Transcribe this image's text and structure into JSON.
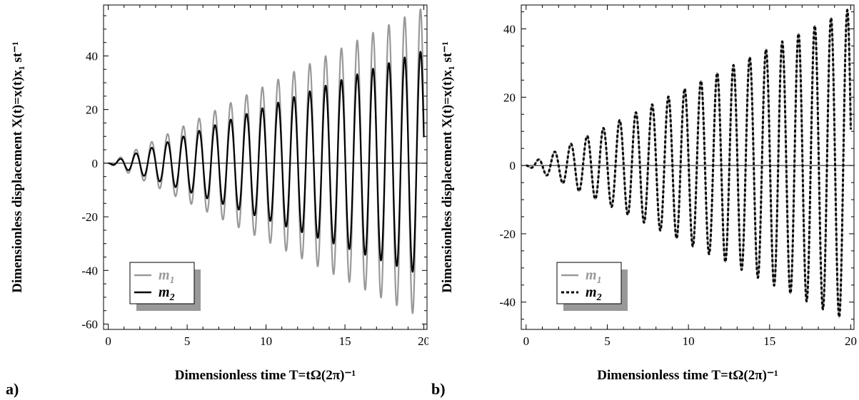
{
  "chart_data": [
    {
      "type": "line",
      "panel_label": "a)",
      "xlabel": "Dimensionless time T=tΩ(2π)⁻¹",
      "ylabel": "Dimensionless displacement X(t)=x(t)x₁ st⁻¹",
      "xlim": [
        -0.3,
        20.2
      ],
      "ylim": [
        -62,
        59
      ],
      "x_ticks": [
        0,
        5,
        10,
        15,
        20
      ],
      "y_ticks": [
        -60,
        -40,
        -20,
        0,
        20,
        40
      ],
      "grid": false,
      "legend_position": "bottom-left",
      "series": [
        {
          "name": "m1",
          "subscript": "1",
          "color": "#999999",
          "style": "solid",
          "growth_rate": 2.9,
          "final_value": -57
        },
        {
          "name": "m2",
          "subscript": "2",
          "color": "#000000",
          "style": "solid",
          "growth_rate": 2.1,
          "final_value": -43
        }
      ]
    },
    {
      "type": "line",
      "panel_label": "b)",
      "xlabel": "Dimensionless time T=tΩ(2π)⁻¹",
      "ylabel": "Dimensionless displacement X(t)=x(t)x₁ st⁻¹",
      "xlim": [
        -0.3,
        20.2
      ],
      "ylim": [
        -48,
        47
      ],
      "x_ticks": [
        0,
        5,
        10,
        15,
        20
      ],
      "y_ticks": [
        -40,
        -20,
        0,
        20,
        40
      ],
      "grid": false,
      "legend_position": "bottom-left",
      "series": [
        {
          "name": "m1",
          "subscript": "1",
          "color": "#999999",
          "style": "solid",
          "growth_rate": 2.3,
          "final_value": -45
        },
        {
          "name": "m2",
          "subscript": "2",
          "color": "#000000",
          "style": "dashed",
          "growth_rate": 2.3,
          "final_value": -45
        }
      ]
    }
  ]
}
